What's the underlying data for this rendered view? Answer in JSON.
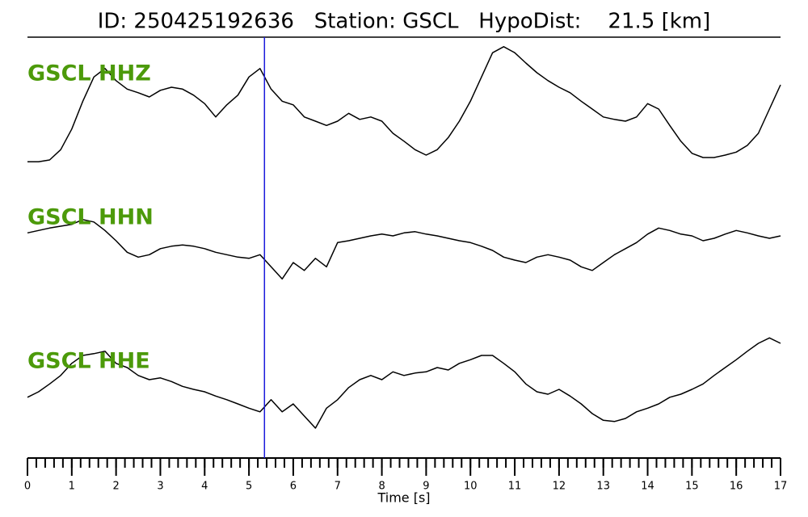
{
  "chart_data": {
    "type": "line",
    "title": "ID: 250425192636   Station: GSCL   HypoDist:    21.5 [km]",
    "xlabel": "Time [s]",
    "xlim": [
      0,
      17
    ],
    "xticks": [
      0,
      1,
      2,
      3,
      4,
      5,
      6,
      7,
      8,
      9,
      10,
      11,
      12,
      13,
      14,
      15,
      16,
      17
    ],
    "xminor_step": 0.2,
    "ylim": [
      -1.2,
      1.2
    ],
    "label_color": "#4c9a0a",
    "pick": {
      "x": 5.35,
      "color": "#1a1adb"
    },
    "x": [
      0,
      0.25,
      0.5,
      0.75,
      1,
      1.25,
      1.5,
      1.75,
      2,
      2.25,
      2.5,
      2.75,
      3,
      3.25,
      3.5,
      3.75,
      4,
      4.25,
      4.5,
      4.75,
      5,
      5.25,
      5.5,
      5.75,
      6,
      6.25,
      6.5,
      6.75,
      7,
      7.25,
      7.5,
      7.75,
      8,
      8.25,
      8.5,
      8.75,
      9,
      9.25,
      9.5,
      9.75,
      10,
      10.25,
      10.5,
      10.75,
      11,
      11.25,
      11.5,
      11.75,
      12,
      12.25,
      12.5,
      12.75,
      13,
      13.25,
      13.5,
      13.75,
      14,
      14.25,
      14.5,
      14.75,
      15,
      15.25,
      15.5,
      15.75,
      16,
      16.25,
      16.5,
      16.75,
      17
    ],
    "series": [
      {
        "name": "GSCL HHZ",
        "color": "#000000",
        "values": [
          -0.83,
          -0.83,
          -0.8,
          -0.63,
          -0.29,
          0.17,
          0.57,
          0.71,
          0.51,
          0.37,
          0.31,
          0.24,
          0.35,
          0.4,
          0.37,
          0.27,
          0.13,
          -0.09,
          0.11,
          0.27,
          0.57,
          0.71,
          0.37,
          0.17,
          0.11,
          -0.09,
          -0.16,
          -0.23,
          -0.16,
          -0.03,
          -0.13,
          -0.09,
          -0.16,
          -0.36,
          -0.49,
          -0.63,
          -0.72,
          -0.63,
          -0.43,
          -0.16,
          0.17,
          0.57,
          0.97,
          1.07,
          0.97,
          0.8,
          0.64,
          0.51,
          0.4,
          0.31,
          0.17,
          0.04,
          -0.09,
          -0.13,
          -0.16,
          -0.09,
          0.13,
          0.04,
          -0.23,
          -0.49,
          -0.69,
          -0.76,
          -0.76,
          -0.72,
          -0.67,
          -0.56,
          -0.36,
          0.04,
          0.44
        ]
      },
      {
        "name": "GSCL HHN",
        "color": "#000000",
        "values": [
          0.37,
          0.41,
          0.45,
          0.48,
          0.51,
          0.59,
          0.55,
          0.41,
          0.24,
          0.05,
          -0.03,
          0.01,
          0.11,
          0.15,
          0.17,
          0.15,
          0.11,
          0.05,
          0.01,
          -0.03,
          -0.05,
          0.01,
          -0.19,
          -0.39,
          -0.12,
          -0.25,
          -0.05,
          -0.19,
          0.21,
          0.24,
          0.28,
          0.32,
          0.35,
          0.32,
          0.37,
          0.39,
          0.35,
          0.32,
          0.28,
          0.24,
          0.21,
          0.15,
          0.08,
          -0.03,
          -0.08,
          -0.12,
          -0.03,
          0.01,
          -0.03,
          -0.08,
          -0.19,
          -0.25,
          -0.12,
          0.01,
          0.11,
          0.21,
          0.35,
          0.45,
          0.41,
          0.35,
          0.32,
          0.24,
          0.28,
          0.35,
          0.41,
          0.37,
          0.32,
          0.28,
          0.32
        ]
      },
      {
        "name": "GSCL HHE",
        "color": "#000000",
        "values": [
          0.03,
          0.12,
          0.25,
          0.39,
          0.59,
          0.72,
          0.75,
          0.79,
          0.59,
          0.52,
          0.39,
          0.32,
          0.35,
          0.29,
          0.21,
          0.16,
          0.12,
          0.05,
          -0.01,
          -0.08,
          -0.15,
          -0.21,
          -0.01,
          -0.21,
          -0.08,
          -0.28,
          -0.48,
          -0.15,
          -0.01,
          0.19,
          0.32,
          0.39,
          0.32,
          0.45,
          0.39,
          0.43,
          0.45,
          0.52,
          0.48,
          0.59,
          0.65,
          0.72,
          0.72,
          0.59,
          0.45,
          0.25,
          0.12,
          0.08,
          0.16,
          0.05,
          -0.08,
          -0.24,
          -0.35,
          -0.37,
          -0.32,
          -0.21,
          -0.15,
          -0.08,
          0.03,
          0.08,
          0.16,
          0.25,
          0.39,
          0.52,
          0.65,
          0.79,
          0.92,
          1.01,
          0.92
        ]
      }
    ]
  }
}
